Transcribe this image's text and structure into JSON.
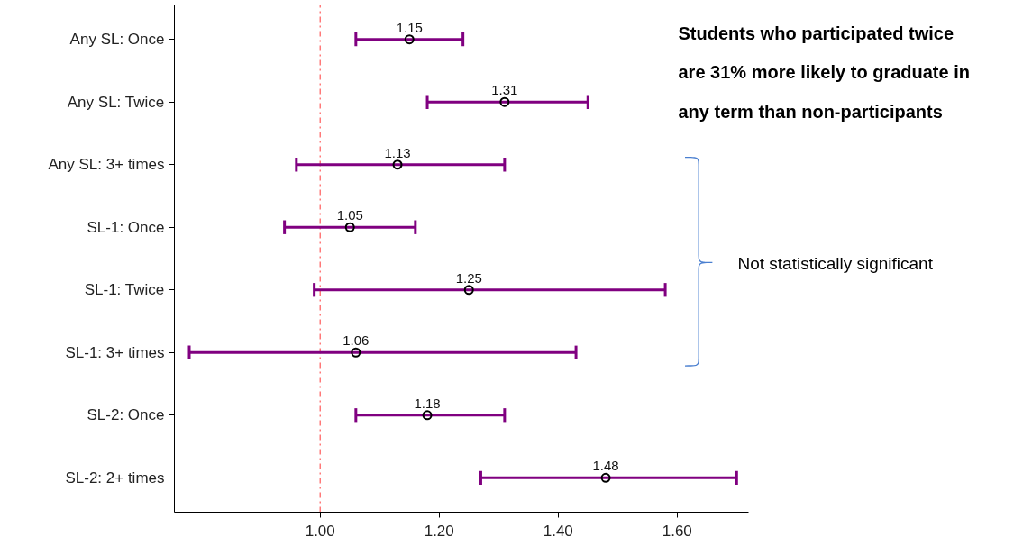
{
  "chart_data": {
    "type": "scatter",
    "orientation": "horizontal",
    "categories": [
      "Any SL: Once",
      "Any SL: Twice",
      "Any SL: 3+ times",
      "SL-1: Once",
      "SL-1: Twice",
      "SL-1: 3+ times",
      "SL-2: Once",
      "SL-2: 2+ times"
    ],
    "values": [
      1.15,
      1.31,
      1.13,
      1.05,
      1.25,
      1.06,
      1.18,
      1.48
    ],
    "errors": [
      [
        1.06,
        1.24
      ],
      [
        1.18,
        1.45
      ],
      [
        0.96,
        1.31
      ],
      [
        0.94,
        1.16
      ],
      [
        0.99,
        1.58
      ],
      [
        0.78,
        1.43
      ],
      [
        1.06,
        1.31
      ],
      [
        1.27,
        1.7
      ]
    ],
    "color": "#000000",
    "marker": "circle",
    "data_labels": true,
    "xlim": [
      0.755,
      1.72
    ],
    "xticks": [
      {
        "value": 1.0,
        "label": "1.00"
      },
      {
        "value": 1.2,
        "label": "1.20"
      },
      {
        "value": 1.4,
        "label": "1.40"
      },
      {
        "value": 1.6,
        "label": "1.60"
      }
    ],
    "ref_lines": [
      {
        "axis": "x",
        "value": 1.0,
        "color": "#ff6666",
        "line_style": "dashdot"
      }
    ],
    "grid": false,
    "annotations": [
      "Students who participated twice are 31% more likely to graduate in any term than non-participants",
      "Not statistically significant"
    ]
  }
}
